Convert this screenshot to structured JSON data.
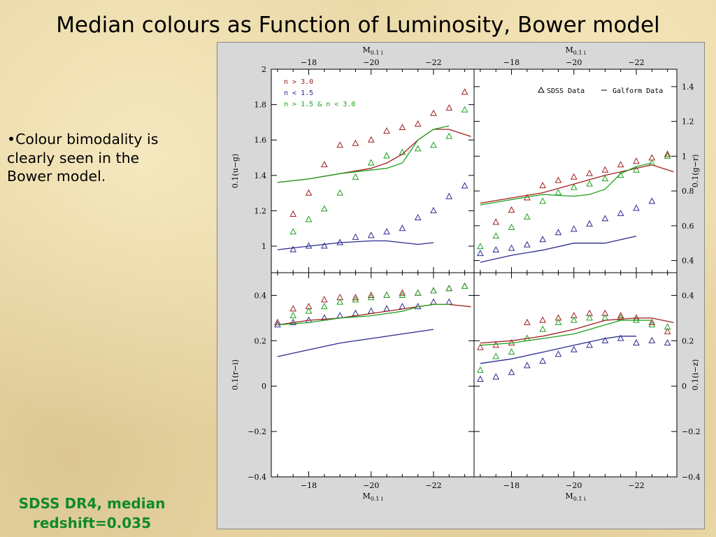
{
  "page": {
    "title": "Median colours as Function of Luminosity, Bower model",
    "bullet": "•Colour bimodality is clearly seen in the Bower model.",
    "footer_line1": "SDSS DR4, median",
    "footer_line2": "redshift=0.035"
  },
  "chart_data": [
    {
      "type": "scatter",
      "ylabel": "0.1(u−g)",
      "xlabel": "M0.1 i",
      "xlim": [
        -16.8,
        -23.3
      ],
      "ylim": [
        0.85,
        2.0
      ],
      "yticks": [
        1,
        1.2,
        1.4,
        1.6,
        1.8,
        2
      ],
      "legend": {
        "placement": "top-left",
        "entries": [
          {
            "label": "n > 3.0",
            "color": "#a01e1e"
          },
          {
            "label": "n < 1.5",
            "color": "#2a2a8f"
          },
          {
            "label": "n > 1.5 & n < 3.0",
            "color": "#1ea01e"
          }
        ]
      },
      "series": [
        {
          "name": "n > 3.0",
          "color": "#a01e1e",
          "kind": "points",
          "x": [
            -17.5,
            -18.0,
            -18.5,
            -19.0,
            -19.5,
            -20.0,
            -20.5,
            -21.0,
            -21.5,
            -22.0,
            -22.5,
            -23.0
          ],
          "y": [
            1.18,
            1.3,
            1.46,
            1.57,
            1.58,
            1.6,
            1.65,
            1.67,
            1.69,
            1.75,
            1.78,
            1.87
          ]
        },
        {
          "name": "n < 1.5",
          "color": "#2a2a8f",
          "kind": "points",
          "x": [
            -17.5,
            -18.0,
            -18.5,
            -19.0,
            -19.5,
            -20.0,
            -20.5,
            -21.0,
            -21.5,
            -22.0,
            -22.5,
            -23.0
          ],
          "y": [
            0.98,
            1.0,
            1.0,
            1.02,
            1.05,
            1.06,
            1.08,
            1.1,
            1.16,
            1.2,
            1.28,
            1.34
          ]
        },
        {
          "name": "n > 1.5 & n < 3.0",
          "color": "#1ea01e",
          "kind": "points",
          "x": [
            -17.5,
            -18.0,
            -18.5,
            -19.0,
            -19.5,
            -20.0,
            -20.5,
            -21.0,
            -21.5,
            -22.0,
            -22.5,
            -23.0
          ],
          "y": [
            1.08,
            1.15,
            1.21,
            1.3,
            1.39,
            1.47,
            1.51,
            1.53,
            1.55,
            1.57,
            1.62,
            1.77
          ]
        },
        {
          "name": "n > 3.0",
          "color": "#a01e1e",
          "kind": "line",
          "x": [
            -17.0,
            -18.0,
            -19.0,
            -20.0,
            -20.5,
            -21.0,
            -21.5,
            -22.0,
            -22.5,
            -23.2
          ],
          "y": [
            1.36,
            1.38,
            1.41,
            1.44,
            1.47,
            1.52,
            1.6,
            1.66,
            1.66,
            1.62
          ]
        },
        {
          "name": "n > 1.5 & n < 3.0",
          "color": "#1ea01e",
          "kind": "line",
          "x": [
            -17.0,
            -18.0,
            -19.0,
            -20.0,
            -20.5,
            -21.0,
            -21.5,
            -22.0,
            -22.5
          ],
          "y": [
            1.36,
            1.38,
            1.41,
            1.43,
            1.44,
            1.47,
            1.6,
            1.66,
            1.68
          ]
        },
        {
          "name": "n < 1.5",
          "color": "#2a2a8f",
          "kind": "line",
          "x": [
            -17.0,
            -18.0,
            -19.0,
            -20.0,
            -20.5,
            -21.0,
            -21.5,
            -22.0
          ],
          "y": [
            0.98,
            1.0,
            1.02,
            1.03,
            1.03,
            1.02,
            1.01,
            1.02
          ]
        }
      ]
    },
    {
      "type": "scatter",
      "ylabel": "0.1(g−r)",
      "xlabel": "M0.1 i",
      "xlim": [
        -16.8,
        -23.3
      ],
      "ylim": [
        0.33,
        1.5
      ],
      "yticks": [
        0.4,
        0.6,
        0.8,
        1,
        1.2,
        1.4
      ],
      "legend": {
        "placement": "top-right",
        "entries": [
          {
            "label": "SDSS Data",
            "marker": "triangle"
          },
          {
            "label": "Galform Data",
            "marker": "line"
          }
        ]
      },
      "series": [
        {
          "name": "n > 3.0",
          "color": "#a01e1e",
          "kind": "points",
          "x": [
            -17.5,
            -18.0,
            -18.5,
            -19.0,
            -19.5,
            -20.0,
            -20.5,
            -21.0,
            -21.5,
            -22.0,
            -22.5,
            -23.0
          ],
          "y": [
            0.62,
            0.69,
            0.76,
            0.83,
            0.86,
            0.88,
            0.9,
            0.92,
            0.95,
            0.97,
            0.99,
            1.01
          ]
        },
        {
          "name": "n < 1.5",
          "color": "#2a2a8f",
          "kind": "points",
          "x": [
            -17.0,
            -17.5,
            -18.0,
            -18.5,
            -19.0,
            -19.5,
            -20.0,
            -20.5,
            -21.0,
            -21.5,
            -22.0,
            -22.5
          ],
          "y": [
            0.44,
            0.46,
            0.47,
            0.49,
            0.52,
            0.56,
            0.58,
            0.61,
            0.64,
            0.67,
            0.7,
            0.74
          ]
        },
        {
          "name": "n > 1.5 & n < 3.0",
          "color": "#1ea01e",
          "kind": "points",
          "x": [
            -17.0,
            -17.5,
            -18.0,
            -18.5,
            -19.0,
            -19.5,
            -20.0,
            -20.5,
            -21.0,
            -21.5,
            -22.0,
            -22.5,
            -23.0
          ],
          "y": [
            0.48,
            0.54,
            0.59,
            0.65,
            0.74,
            0.79,
            0.82,
            0.84,
            0.87,
            0.89,
            0.92,
            0.96,
            1.0
          ]
        },
        {
          "name": "n > 3.0",
          "color": "#a01e1e",
          "kind": "line",
          "x": [
            -17.0,
            -18.0,
            -19.0,
            -20.0,
            -21.0,
            -22.0,
            -22.5,
            -23.2
          ],
          "y": [
            0.73,
            0.76,
            0.79,
            0.84,
            0.89,
            0.93,
            0.95,
            0.91
          ]
        },
        {
          "name": "n > 1.5 & n < 3.0",
          "color": "#1ea01e",
          "kind": "line",
          "x": [
            -17.0,
            -18.0,
            -19.0,
            -20.0,
            -20.5,
            -21.0,
            -21.5,
            -22.0,
            -22.5
          ],
          "y": [
            0.72,
            0.75,
            0.78,
            0.77,
            0.78,
            0.81,
            0.9,
            0.94,
            0.96
          ]
        },
        {
          "name": "n < 1.5",
          "color": "#2a2a8f",
          "kind": "line",
          "x": [
            -17.0,
            -18.0,
            -19.0,
            -20.0,
            -21.0,
            -21.5,
            -22.0
          ],
          "y": [
            0.39,
            0.43,
            0.46,
            0.5,
            0.5,
            0.52,
            0.54
          ]
        }
      ]
    },
    {
      "type": "scatter",
      "ylabel": "0.1(r−i)",
      "xlabel": "M0.1 i",
      "xlim": [
        -16.8,
        -23.3
      ],
      "ylim": [
        -0.4,
        0.5
      ],
      "yticks": [
        -0.4,
        -0.2,
        0,
        0.2,
        0.4
      ],
      "series": [
        {
          "name": "n > 3.0",
          "color": "#a01e1e",
          "kind": "points",
          "x": [
            -17.0,
            -17.5,
            -18.0,
            -18.5,
            -19.0,
            -19.5,
            -20.0,
            -20.5,
            -21.0,
            -21.5,
            -22.0,
            -22.5,
            -23.0
          ],
          "y": [
            0.28,
            0.34,
            0.35,
            0.38,
            0.39,
            0.39,
            0.4,
            0.4,
            0.41,
            0.41,
            0.42,
            0.43,
            0.44
          ]
        },
        {
          "name": "n < 1.5",
          "color": "#2a2a8f",
          "kind": "points",
          "x": [
            -17.0,
            -17.5,
            -18.0,
            -18.5,
            -19.0,
            -19.5,
            -20.0,
            -20.5,
            -21.0,
            -21.5,
            -22.0,
            -22.5
          ],
          "y": [
            0.27,
            0.28,
            0.29,
            0.3,
            0.31,
            0.32,
            0.33,
            0.34,
            0.35,
            0.35,
            0.37,
            0.37
          ]
        },
        {
          "name": "n > 1.5 & n < 3.0",
          "color": "#1ea01e",
          "kind": "points",
          "x": [
            -17.5,
            -18.0,
            -18.5,
            -19.0,
            -19.5,
            -20.0,
            -20.5,
            -21.0,
            -21.5,
            -22.0,
            -22.5,
            -23.0
          ],
          "y": [
            0.31,
            0.33,
            0.35,
            0.37,
            0.38,
            0.39,
            0.4,
            0.4,
            0.41,
            0.42,
            0.43,
            0.44
          ]
        },
        {
          "name": "n > 3.0",
          "color": "#a01e1e",
          "kind": "line",
          "x": [
            -17.0,
            -18.0,
            -19.0,
            -20.0,
            -21.0,
            -22.0,
            -22.5,
            -23.2
          ],
          "y": [
            0.27,
            0.29,
            0.3,
            0.32,
            0.34,
            0.36,
            0.36,
            0.35
          ]
        },
        {
          "name": "n > 1.5 & n < 3.0",
          "color": "#1ea01e",
          "kind": "line",
          "x": [
            -17.0,
            -18.0,
            -19.0,
            -20.0,
            -20.5,
            -21.0,
            -21.5,
            -22.0,
            -22.5
          ],
          "y": [
            0.27,
            0.28,
            0.3,
            0.31,
            0.32,
            0.33,
            0.35,
            0.36,
            0.36
          ]
        },
        {
          "name": "n < 1.5",
          "color": "#2a2a8f",
          "kind": "line",
          "x": [
            -17.0,
            -18.0,
            -19.0,
            -20.0,
            -21.0,
            -22.0
          ],
          "y": [
            0.13,
            0.16,
            0.19,
            0.21,
            0.23,
            0.25
          ]
        }
      ]
    },
    {
      "type": "scatter",
      "ylabel": "0.1(i−z)",
      "xlabel": "M0.1 i",
      "xlim": [
        -16.8,
        -23.3
      ],
      "ylim": [
        -0.4,
        0.5
      ],
      "yticks": [
        -0.4,
        -0.2,
        0,
        0.2,
        0.4
      ],
      "series": [
        {
          "name": "n > 3.0",
          "color": "#a01e1e",
          "kind": "points",
          "x": [
            -17.0,
            -17.5,
            -18.0,
            -18.5,
            -19.0,
            -19.5,
            -20.0,
            -20.5,
            -21.0,
            -21.5,
            -22.0,
            -22.5,
            -23.0
          ],
          "y": [
            0.17,
            0.18,
            0.19,
            0.28,
            0.29,
            0.3,
            0.31,
            0.32,
            0.32,
            0.31,
            0.3,
            0.28,
            0.24
          ]
        },
        {
          "name": "n < 1.5",
          "color": "#2a2a8f",
          "kind": "points",
          "x": [
            -17.0,
            -17.5,
            -18.0,
            -18.5,
            -19.0,
            -19.5,
            -20.0,
            -20.5,
            -21.0,
            -21.5,
            -22.0,
            -22.5,
            -23.0
          ],
          "y": [
            0.03,
            0.04,
            0.06,
            0.09,
            0.11,
            0.14,
            0.16,
            0.18,
            0.2,
            0.21,
            0.19,
            0.2,
            0.19
          ]
        },
        {
          "name": "n > 1.5 & n < 3.0",
          "color": "#1ea01e",
          "kind": "points",
          "x": [
            -17.0,
            -17.5,
            -18.0,
            -18.5,
            -19.0,
            -19.5,
            -20.0,
            -20.5,
            -21.0,
            -21.5,
            -22.0,
            -22.5,
            -23.0
          ],
          "y": [
            0.07,
            0.13,
            0.15,
            0.21,
            0.25,
            0.28,
            0.29,
            0.3,
            0.3,
            0.3,
            0.29,
            0.27,
            0.26
          ]
        },
        {
          "name": "n > 3.0",
          "color": "#a01e1e",
          "kind": "line",
          "x": [
            -17.0,
            -18.0,
            -19.0,
            -20.0,
            -21.0,
            -22.0,
            -22.5,
            -23.2
          ],
          "y": [
            0.19,
            0.2,
            0.22,
            0.25,
            0.29,
            0.3,
            0.3,
            0.28
          ]
        },
        {
          "name": "n > 1.5 & n < 3.0",
          "color": "#1ea01e",
          "kind": "line",
          "x": [
            -17.0,
            -18.0,
            -19.0,
            -20.0,
            -21.0,
            -21.5,
            -22.0,
            -22.5
          ],
          "y": [
            0.18,
            0.19,
            0.21,
            0.23,
            0.27,
            0.29,
            0.29,
            0.29
          ]
        },
        {
          "name": "n < 1.5",
          "color": "#2a2a8f",
          "kind": "line",
          "x": [
            -17.0,
            -18.0,
            -19.0,
            -20.0,
            -21.0,
            -21.5,
            -22.0
          ],
          "y": [
            0.1,
            0.12,
            0.15,
            0.18,
            0.21,
            0.22,
            0.22
          ]
        }
      ]
    }
  ],
  "axes": {
    "top_label": "M",
    "top_label_sub": "0.1 i",
    "x_ticks": [
      -18,
      -20,
      -22
    ]
  }
}
